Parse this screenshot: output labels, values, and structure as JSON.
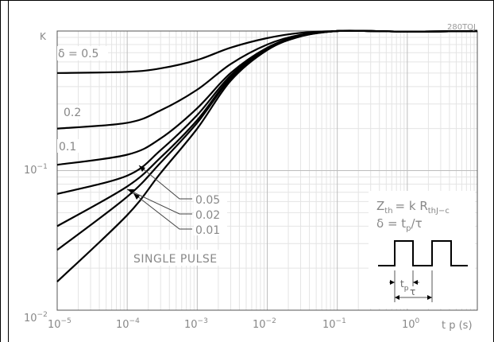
{
  "chart_data": {
    "type": "line",
    "xscale": "log",
    "yscale": "log",
    "xlim": [
      1e-05,
      10
    ],
    "ylim": [
      0.01,
      1
    ],
    "grid": true,
    "x_ticks": [
      {
        "value": 1e-05,
        "base": "10",
        "exp": "−5"
      },
      {
        "value": 0.0001,
        "base": "10",
        "exp": "−4"
      },
      {
        "value": 0.001,
        "base": "10",
        "exp": "−3"
      },
      {
        "value": 0.01,
        "base": "10",
        "exp": "−2"
      },
      {
        "value": 0.1,
        "base": "10",
        "exp": "−1"
      },
      {
        "value": 1,
        "base": "10",
        "exp": "0"
      }
    ],
    "y_ticks": [
      {
        "value": 0.1,
        "base": "10",
        "exp": "−1"
      },
      {
        "value": 0.01,
        "base": "10",
        "exp": "−2"
      }
    ],
    "xlabel": "t p (s)",
    "ylabel": "K",
    "code": "280TOJ",
    "series": [
      {
        "name": "δ = 0.5",
        "x": [
          1e-05,
          0.0001,
          0.0003,
          0.001,
          0.003,
          0.01,
          0.03,
          0.1,
          0.3,
          1,
          10
        ],
        "y": [
          0.5,
          0.51,
          0.54,
          0.62,
          0.76,
          0.89,
          0.97,
          1.0,
          1.0,
          0.99,
          1.0
        ]
      },
      {
        "name": "0.2",
        "x": [
          1e-05,
          0.0001,
          0.0003,
          0.001,
          0.003,
          0.01,
          0.03,
          0.1,
          0.3,
          1,
          10
        ],
        "y": [
          0.2,
          0.22,
          0.27,
          0.38,
          0.58,
          0.8,
          0.94,
          1.0,
          1.0,
          0.99,
          1.0
        ]
      },
      {
        "name": "0.1",
        "x": [
          1e-05,
          0.0001,
          0.0003,
          0.001,
          0.003,
          0.01,
          0.03,
          0.1,
          0.3,
          1,
          10
        ],
        "y": [
          0.11,
          0.13,
          0.17,
          0.28,
          0.5,
          0.76,
          0.93,
          1.0,
          1.0,
          0.99,
          1.0
        ]
      },
      {
        "name": "0.05",
        "x": [
          1e-05,
          0.0001,
          0.0003,
          0.001,
          0.003,
          0.01,
          0.03,
          0.1,
          0.3,
          1,
          10
        ],
        "y": [
          0.068,
          0.092,
          0.14,
          0.25,
          0.48,
          0.75,
          0.93,
          1.0,
          1.0,
          0.99,
          1.0
        ]
      },
      {
        "name": "0.02",
        "x": [
          1e-05,
          0.0001,
          0.0003,
          0.001,
          0.003,
          0.01,
          0.03,
          0.1,
          0.3,
          1,
          10
        ],
        "y": [
          0.04,
          0.077,
          0.124,
          0.23,
          0.465,
          0.74,
          0.925,
          1.0,
          1.0,
          0.99,
          1.0
        ]
      },
      {
        "name": "0.01",
        "x": [
          1e-05,
          0.0001,
          0.0003,
          0.001,
          0.003,
          0.01,
          0.03,
          0.1,
          0.3,
          1,
          10
        ],
        "y": [
          0.027,
          0.065,
          0.114,
          0.22,
          0.455,
          0.735,
          0.92,
          1.0,
          1.0,
          0.99,
          1.0
        ]
      },
      {
        "name": "SINGLE PULSE",
        "x": [
          1e-05,
          0.0001,
          0.0003,
          0.001,
          0.003,
          0.01,
          0.03,
          0.1,
          0.3,
          1,
          10
        ],
        "y": [
          0.016,
          0.048,
          0.096,
          0.2,
          0.44,
          0.73,
          0.915,
          1.0,
          1.0,
          0.99,
          1.0
        ]
      }
    ],
    "annotations": {
      "formula_line1_left": "Z",
      "formula_line1_sub": "th",
      "formula_line1_right": "= k R",
      "formula_line1_sub2": "thJ−c",
      "formula_line2_left": "δ = t",
      "formula_line2_sub": "p",
      "formula_line2_right": "/τ",
      "tp_label": "t",
      "tp_sub": "p",
      "tau_label": "τ"
    }
  }
}
